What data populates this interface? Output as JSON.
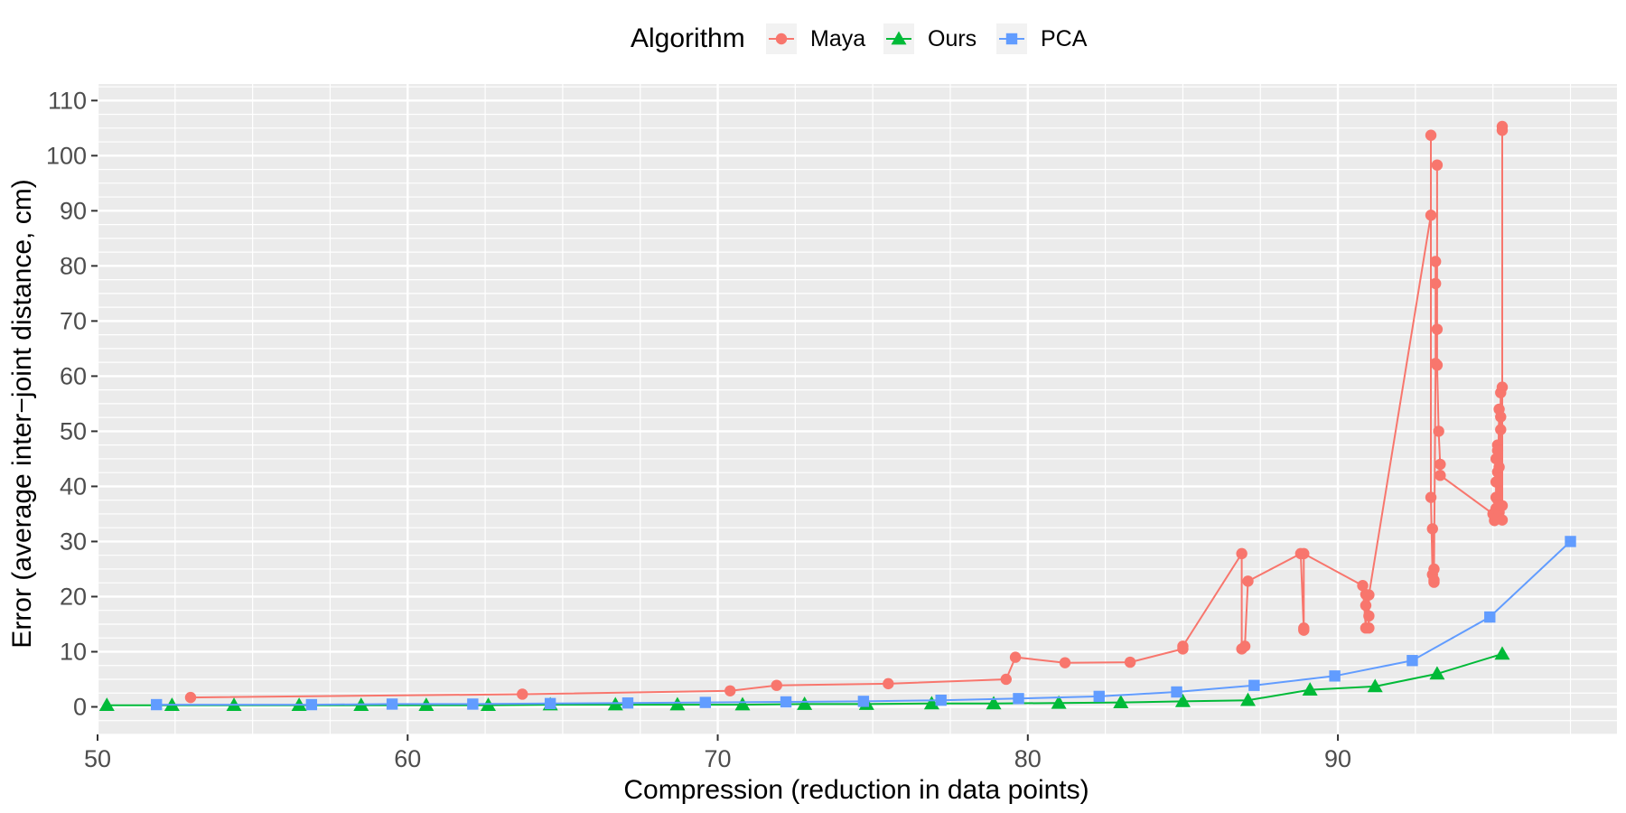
{
  "chart_data": {
    "type": "line",
    "xlabel": "Compression (reduction in data points)",
    "ylabel": "Error (average inter−joint distance, cm)",
    "xlim": [
      50,
      99
    ],
    "ylim": [
      -5,
      113
    ],
    "x_ticks": [
      50,
      60,
      70,
      80,
      90
    ],
    "y_ticks": [
      0,
      10,
      20,
      30,
      40,
      50,
      60,
      70,
      80,
      90,
      100,
      110
    ],
    "grid": true,
    "legend": {
      "title": "Algorithm",
      "placement": "top-center"
    },
    "series": [
      {
        "name": "Maya",
        "color": "#F8766D",
        "marker": "circle",
        "x": [
          53.0,
          63.7,
          70.4,
          71.9,
          75.5,
          79.3,
          79.6,
          81.2,
          83.3,
          85.0,
          85.0,
          86.9,
          86.9,
          87.0,
          87.1,
          88.8,
          88.9,
          88.9,
          88.9,
          90.8,
          90.9,
          90.9,
          90.9,
          91.0,
          91.0,
          91.0,
          93.0,
          93.0,
          93.0,
          93.05,
          93.05,
          93.1,
          93.1,
          93.1,
          93.15,
          93.15,
          93.15,
          93.2,
          93.2,
          93.2,
          93.25,
          93.3,
          93.3,
          95.0,
          95.05,
          95.05,
          95.1,
          95.1,
          95.1,
          95.1,
          95.15,
          95.15,
          95.15,
          95.15,
          95.2,
          95.2,
          95.2,
          95.25,
          95.25,
          95.25,
          95.25,
          95.3,
          95.3,
          95.3,
          95.3,
          95.3
        ],
        "y": [
          1.7,
          2.3,
          2.9,
          3.9,
          4.2,
          5.0,
          9.0,
          8.0,
          8.1,
          10.5,
          11.0,
          27.8,
          10.5,
          11.0,
          22.8,
          27.8,
          13.9,
          14.3,
          27.8,
          22.0,
          14.3,
          18.4,
          20.4,
          14.3,
          16.5,
          20.3,
          89.2,
          103.7,
          38.0,
          24.0,
          32.3,
          22.6,
          23.0,
          25.0,
          62.3,
          76.8,
          80.8,
          68.5,
          98.3,
          62.0,
          50.0,
          44.0,
          42.0,
          35.0,
          33.8,
          34.7,
          36.0,
          38.0,
          40.8,
          45.0,
          47.5,
          46.5,
          42.6,
          37.6,
          54.0,
          43.5,
          35.3,
          57.0,
          50.3,
          52.6,
          36.5,
          58.0,
          36.5,
          33.9,
          105.3,
          104.6
        ]
      },
      {
        "name": "Ours",
        "color": "#00BA38",
        "marker": "triangle",
        "x": [
          50.3,
          52.4,
          54.4,
          56.5,
          58.5,
          60.6,
          62.6,
          64.6,
          66.7,
          68.7,
          70.8,
          72.8,
          74.8,
          76.9,
          78.9,
          81.0,
          83.0,
          85.0,
          87.1,
          89.1,
          91.2,
          93.2,
          95.3
        ],
        "y": [
          0.3,
          0.3,
          0.3,
          0.3,
          0.3,
          0.3,
          0.3,
          0.4,
          0.4,
          0.4,
          0.4,
          0.5,
          0.5,
          0.6,
          0.6,
          0.7,
          0.8,
          1.0,
          1.2,
          3.1,
          3.7,
          6.0,
          9.6
        ]
      },
      {
        "name": "PCA",
        "color": "#619CFF",
        "marker": "square",
        "x": [
          51.9,
          56.9,
          59.5,
          62.1,
          64.6,
          67.1,
          69.6,
          72.2,
          74.7,
          77.2,
          79.7,
          82.3,
          84.8,
          87.3,
          89.9,
          92.4,
          94.9,
          97.5
        ],
        "y": [
          0.4,
          0.4,
          0.5,
          0.5,
          0.6,
          0.7,
          0.8,
          0.9,
          1.0,
          1.2,
          1.5,
          1.9,
          2.7,
          3.9,
          5.6,
          8.4,
          16.3,
          30.0
        ]
      }
    ]
  }
}
